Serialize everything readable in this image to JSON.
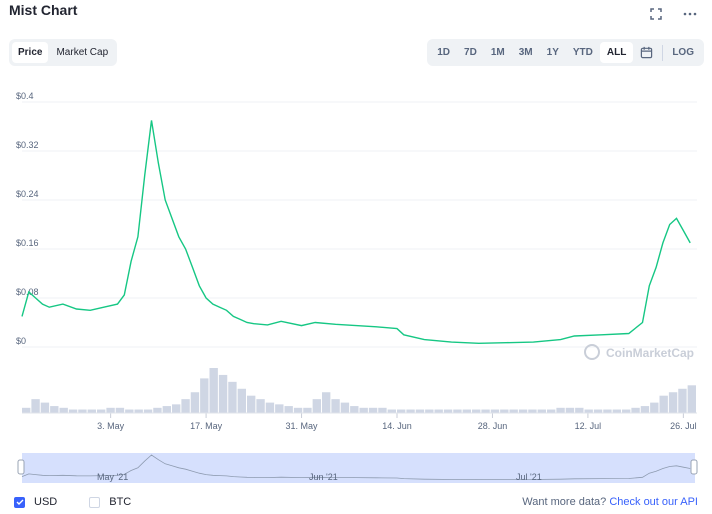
{
  "header": {
    "title": "Mist Chart"
  },
  "icons": {
    "fullscreen": "fullscreen-icon",
    "more": "more-icon",
    "calendar": "calendar-icon",
    "check": "check-icon",
    "watermark": "coinmarketcap-logo-icon"
  },
  "toggles": [
    {
      "label": "Price",
      "active": true
    },
    {
      "label": "Market Cap",
      "active": false
    }
  ],
  "ranges": [
    {
      "label": "1D",
      "active": false
    },
    {
      "label": "7D",
      "active": false
    },
    {
      "label": "1M",
      "active": false
    },
    {
      "label": "3M",
      "active": false
    },
    {
      "label": "1Y",
      "active": false
    },
    {
      "label": "YTD",
      "active": false
    },
    {
      "label": "ALL",
      "active": true
    }
  ],
  "log_label": "LOG",
  "watermark": "CoinMarketCap",
  "navigator": {
    "labels": [
      "May '21",
      "Jun '21",
      "Jul '21"
    ]
  },
  "footer": {
    "currencies": [
      {
        "label": "USD",
        "checked": true
      },
      {
        "label": "BTC",
        "checked": false
      }
    ],
    "api_text": "Want more data?",
    "api_link": "Check out our API"
  },
  "colors": {
    "line": "#16c784",
    "accent": "#3861fb",
    "volume": "#cfd6e4",
    "navigator_fill": "#d6e0fd"
  },
  "chart_data": {
    "type": "line",
    "title": "Mist Chart",
    "series": [
      {
        "x": [
          "2021-04-20",
          "2021-04-21",
          "2021-04-22",
          "2021-04-23",
          "2021-04-24",
          "2021-04-26",
          "2021-04-28",
          "2021-04-30",
          "2021-05-02",
          "2021-05-04",
          "2021-05-05",
          "2021-05-06",
          "2021-05-07",
          "2021-05-08",
          "2021-05-09",
          "2021-05-10",
          "2021-05-11",
          "2021-05-12",
          "2021-05-13",
          "2021-05-14",
          "2021-05-15",
          "2021-05-16",
          "2021-05-17",
          "2021-05-18",
          "2021-05-19",
          "2021-05-20",
          "2021-05-21",
          "2021-05-22",
          "2021-05-23",
          "2021-05-24",
          "2021-05-26",
          "2021-05-28",
          "2021-05-31",
          "2021-06-02",
          "2021-06-05",
          "2021-06-08",
          "2021-06-11",
          "2021-06-14",
          "2021-06-15",
          "2021-06-18",
          "2021-06-22",
          "2021-06-26",
          "2021-06-30",
          "2021-07-04",
          "2021-07-08",
          "2021-07-10",
          "2021-07-14",
          "2021-07-18",
          "2021-07-20",
          "2021-07-21",
          "2021-07-22",
          "2021-07-23",
          "2021-07-24",
          "2021-07-25",
          "2021-07-26",
          "2021-07-27"
        ],
        "y": [
          0.05,
          0.09,
          0.08,
          0.07,
          0.065,
          0.07,
          0.062,
          0.06,
          0.065,
          0.07,
          0.085,
          0.14,
          0.18,
          0.28,
          0.37,
          0.3,
          0.24,
          0.21,
          0.18,
          0.16,
          0.13,
          0.1,
          0.08,
          0.07,
          0.065,
          0.06,
          0.05,
          0.045,
          0.04,
          0.038,
          0.036,
          0.042,
          0.035,
          0.04,
          0.037,
          0.035,
          0.033,
          0.03,
          0.02,
          0.012,
          0.008,
          0.006,
          0.007,
          0.008,
          0.012,
          0.018,
          0.02,
          0.022,
          0.04,
          0.1,
          0.13,
          0.17,
          0.2,
          0.21,
          0.19,
          0.17
        ]
      }
    ],
    "ylim": [
      0,
      0.4
    ],
    "yticks": [
      "$0",
      "$0.08",
      "$0.16",
      "$0.24",
      "$0.32",
      "$0.4"
    ],
    "ytick_values": [
      0,
      0.08,
      0.16,
      0.24,
      0.32,
      0.4
    ],
    "xticks": [
      "3. May",
      "17. May",
      "31. May",
      "14. Jun",
      "28. Jun",
      "12. Jul",
      "26. Jul"
    ],
    "xtick_dates": [
      "2021-05-03",
      "2021-05-17",
      "2021-05-31",
      "2021-06-14",
      "2021-06-28",
      "2021-07-12",
      "2021-07-26"
    ],
    "volume": [
      3,
      8,
      6,
      4,
      3,
      2,
      2,
      2,
      2,
      3,
      3,
      2,
      2,
      2,
      3,
      4,
      5,
      8,
      12,
      20,
      26,
      22,
      18,
      14,
      10,
      8,
      6,
      5,
      4,
      3,
      3,
      8,
      12,
      8,
      6,
      4,
      3,
      3,
      3,
      2,
      2,
      2,
      2,
      2,
      2,
      2,
      2,
      2,
      2,
      2,
      2,
      2,
      2,
      2,
      2,
      2,
      2,
      3,
      3,
      3,
      2,
      2,
      2,
      2,
      2,
      3,
      4,
      6,
      10,
      12,
      14,
      16
    ],
    "grid": true
  }
}
